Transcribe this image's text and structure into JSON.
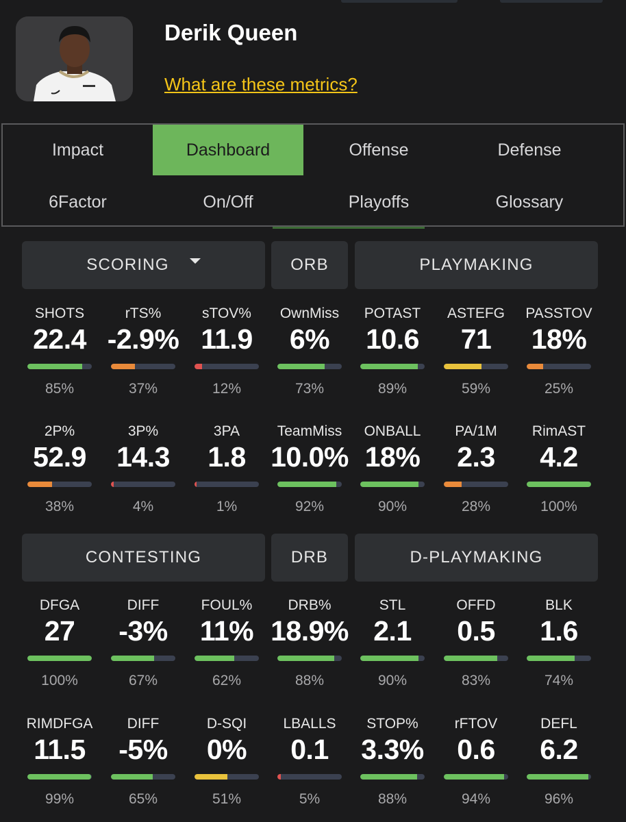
{
  "player": {
    "name": "Derik Queen",
    "metrics_link": "What are these metrics?"
  },
  "tabs": [
    {
      "label": "Impact",
      "active": false
    },
    {
      "label": "Dashboard",
      "active": true
    },
    {
      "label": "Offense",
      "active": false
    },
    {
      "label": "Defense",
      "active": false
    },
    {
      "label": "6Factor",
      "active": false
    },
    {
      "label": "On/Off",
      "active": false
    },
    {
      "label": "Playoffs",
      "active": false
    },
    {
      "label": "Glossary",
      "active": false
    }
  ],
  "colors": {
    "green": "#6dc15f",
    "orange": "#e98a3a",
    "yellow": "#e9c23c",
    "red": "#e0524f",
    "track": "#3b4150"
  },
  "sections": [
    {
      "headers": [
        {
          "label": "SCORING",
          "dropdown": true
        },
        {
          "label": "ORB"
        },
        {
          "label": "PLAYMAKING"
        }
      ],
      "rows": [
        [
          {
            "label": "SHOTS",
            "value": "22.4",
            "pct": "85%",
            "color": "green"
          },
          {
            "label": "rTS%",
            "value": "-2.9%",
            "pct": "37%",
            "color": "orange"
          },
          {
            "label": "sTOV%",
            "value": "11.9",
            "pct": "12%",
            "color": "red"
          },
          {
            "label": "OwnMiss",
            "value": "6%",
            "pct": "73%",
            "color": "green"
          },
          {
            "label": "POTAST",
            "value": "10.6",
            "pct": "89%",
            "color": "green"
          },
          {
            "label": "ASTEFG",
            "value": "71",
            "pct": "59%",
            "color": "yellow"
          },
          {
            "label": "PASSTOV",
            "value": "18%",
            "pct": "25%",
            "color": "orange"
          }
        ],
        [
          {
            "label": "2P%",
            "value": "52.9",
            "pct": "38%",
            "color": "orange"
          },
          {
            "label": "3P%",
            "value": "14.3",
            "pct": "4%",
            "color": "red"
          },
          {
            "label": "3PA",
            "value": "1.8",
            "pct": "1%",
            "color": "red"
          },
          {
            "label": "TeamMiss",
            "value": "10.0%",
            "pct": "92%",
            "color": "green"
          },
          {
            "label": "ONBALL",
            "value": "18%",
            "pct": "90%",
            "color": "green"
          },
          {
            "label": "PA/1M",
            "value": "2.3",
            "pct": "28%",
            "color": "orange"
          },
          {
            "label": "RimAST",
            "value": "4.2",
            "pct": "100%",
            "color": "green"
          }
        ]
      ]
    },
    {
      "headers": [
        {
          "label": "CONTESTING"
        },
        {
          "label": "DRB"
        },
        {
          "label": "D-PLAYMAKING"
        }
      ],
      "rows": [
        [
          {
            "label": "DFGA",
            "value": "27",
            "pct": "100%",
            "color": "green"
          },
          {
            "label": "DIFF",
            "value": "-3%",
            "pct": "67%",
            "color": "green"
          },
          {
            "label": "FOUL%",
            "value": "11%",
            "pct": "62%",
            "color": "green"
          },
          {
            "label": "DRB%",
            "value": "18.9%",
            "pct": "88%",
            "color": "green"
          },
          {
            "label": "STL",
            "value": "2.1",
            "pct": "90%",
            "color": "green"
          },
          {
            "label": "OFFD",
            "value": "0.5",
            "pct": "83%",
            "color": "green"
          },
          {
            "label": "BLK",
            "value": "1.6",
            "pct": "74%",
            "color": "green"
          }
        ],
        [
          {
            "label": "RIMDFGA",
            "value": "11.5",
            "pct": "99%",
            "color": "green"
          },
          {
            "label": "DIFF",
            "value": "-5%",
            "pct": "65%",
            "color": "green"
          },
          {
            "label": "D-SQI",
            "value": "0%",
            "pct": "51%",
            "color": "yellow"
          },
          {
            "label": "LBALLS",
            "value": "0.1",
            "pct": "5%",
            "color": "red"
          },
          {
            "label": "STOP%",
            "value": "3.3%",
            "pct": "88%",
            "color": "green"
          },
          {
            "label": "rFTOV",
            "value": "0.6",
            "pct": "94%",
            "color": "green"
          },
          {
            "label": "DEFL",
            "value": "6.2",
            "pct": "96%",
            "color": "green"
          }
        ]
      ]
    }
  ]
}
